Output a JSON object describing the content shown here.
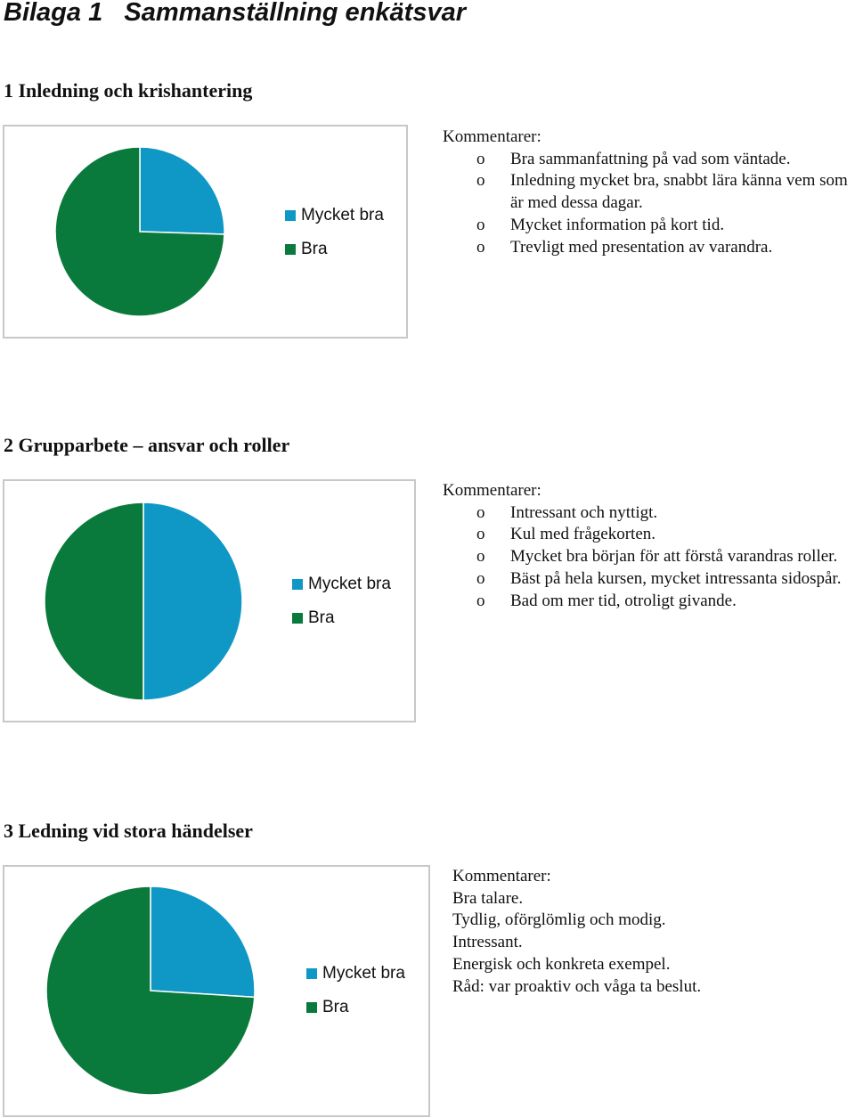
{
  "document": {
    "title_label": "Bilaga 1",
    "title_text": "Sammanställning enkätsvar"
  },
  "colors": {
    "mycket_bra": "#0f97c6",
    "bra": "#0a7a3c",
    "border": "#c8c8c8"
  },
  "bullet_glyph": "o",
  "sections": [
    {
      "heading": "1 Inledning och krishantering",
      "comments_label": "Kommentarer:",
      "comments": [
        "Bra sammanfattning på vad som väntade.",
        "Inledning mycket bra, snabbt lära känna vem som är med dessa dagar.",
        "Mycket information på kort tid.",
        "Trevligt med presentation av varandra."
      ]
    },
    {
      "heading": "2 Grupparbete – ansvar och roller",
      "comments_label": "Kommentarer:",
      "comments": [
        "Intressant och nyttigt.",
        "Kul med frågekorten.",
        "Mycket bra början för att förstå varandras roller.",
        "Bäst på hela kursen, mycket intressanta sidospår.",
        "Bad om mer tid, otroligt givande."
      ]
    },
    {
      "heading": "3 Ledning vid stora händelser",
      "comments_label": "Kommentarer:",
      "comments": [
        "Bra talare.",
        "Tydlig, oförglömlig och modig.",
        "Intressant.",
        "Energisk och konkreta exempel.",
        "Råd: var proaktiv och våga ta beslut."
      ]
    }
  ],
  "chart_data": [
    {
      "type": "pie",
      "categories": [
        "Mycket bra",
        "Bra"
      ],
      "values": [
        25.5,
        74.5
      ],
      "legend": "right"
    },
    {
      "type": "pie",
      "categories": [
        "Mycket bra",
        "Bra"
      ],
      "values": [
        50,
        50
      ],
      "legend": "right"
    },
    {
      "type": "pie",
      "categories": [
        "Mycket bra",
        "Bra"
      ],
      "values": [
        26,
        74
      ],
      "legend": "right"
    }
  ]
}
